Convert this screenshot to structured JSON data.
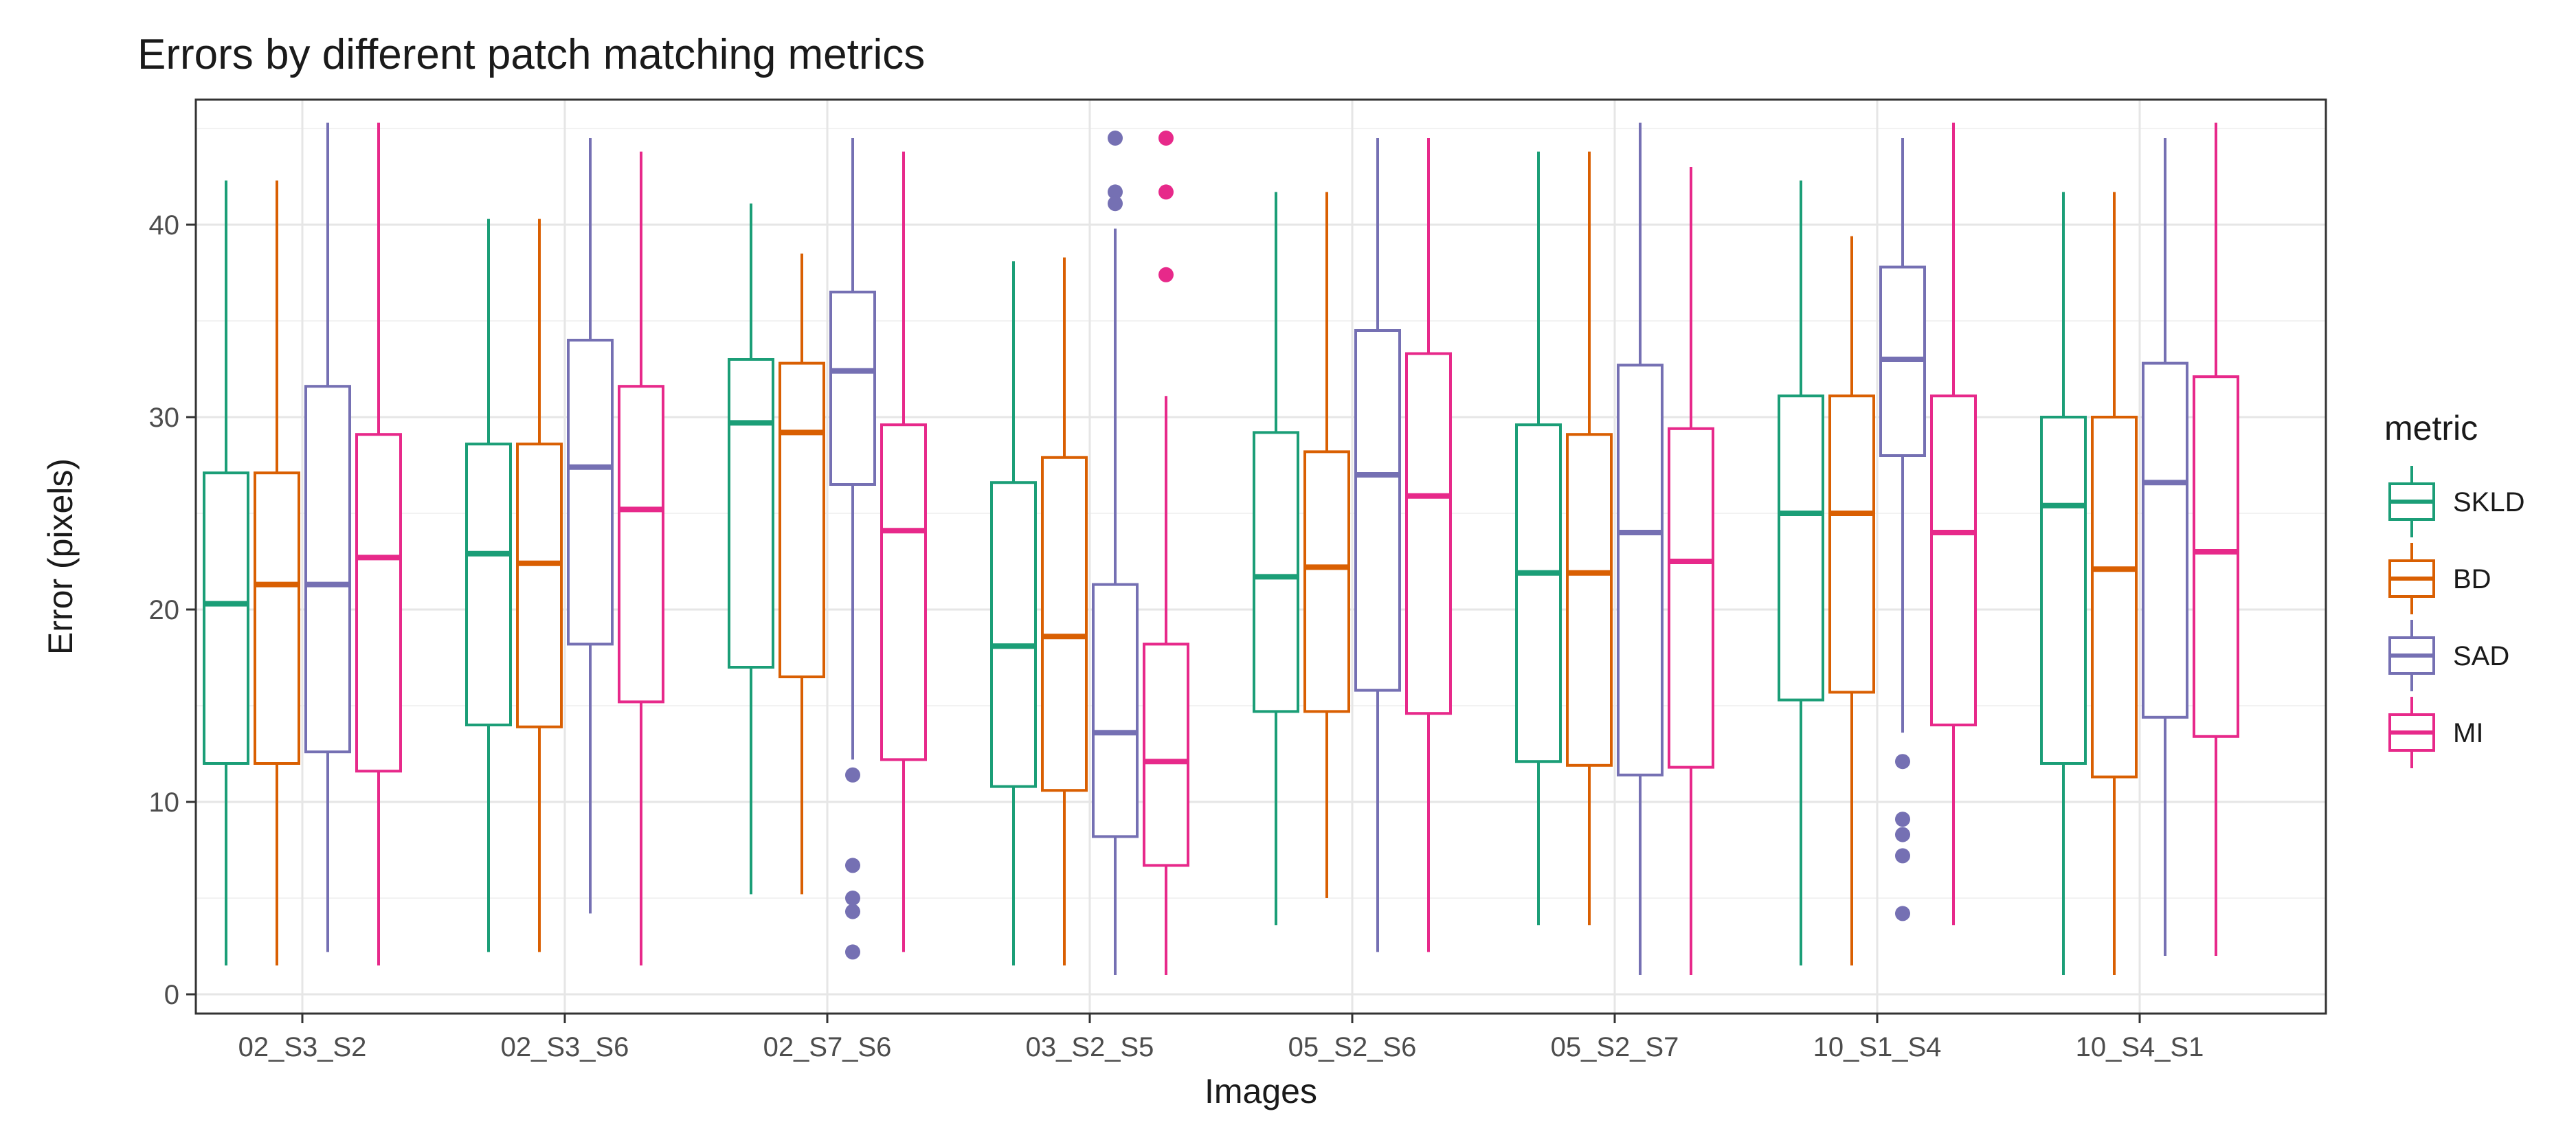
{
  "chart_data": {
    "type": "boxplot",
    "title": "Errors by different patch matching metrics",
    "xlabel": "Images",
    "ylabel": "Error (pixels)",
    "ylim": [
      -1,
      46.5
    ],
    "yticks": [
      0,
      10,
      20,
      30,
      40
    ],
    "grid": true,
    "legend": {
      "title": "metric",
      "placement": "right"
    },
    "categories": [
      "02_S3_S2",
      "02_S3_S6",
      "02_S7_S6",
      "03_S2_S5",
      "05_S2_S6",
      "05_S2_S7",
      "10_S1_S4",
      "10_S4_S1"
    ],
    "series": [
      {
        "name": "SKLD",
        "color": "#1b9e77",
        "boxes": [
          {
            "min": 1.5,
            "q1": 12.0,
            "median": 20.3,
            "q3": 27.1,
            "max": 42.3,
            "outliers": []
          },
          {
            "min": 2.2,
            "q1": 14.0,
            "median": 22.9,
            "q3": 28.6,
            "max": 40.3,
            "outliers": []
          },
          {
            "min": 5.2,
            "q1": 17.0,
            "median": 29.7,
            "q3": 33.0,
            "max": 41.1,
            "outliers": []
          },
          {
            "min": 1.5,
            "q1": 10.8,
            "median": 18.1,
            "q3": 26.6,
            "max": 38.1,
            "outliers": []
          },
          {
            "min": 3.6,
            "q1": 14.7,
            "median": 21.7,
            "q3": 29.2,
            "max": 41.7,
            "outliers": []
          },
          {
            "min": 3.6,
            "q1": 12.1,
            "median": 21.9,
            "q3": 29.6,
            "max": 43.8,
            "outliers": []
          },
          {
            "min": 1.5,
            "q1": 15.3,
            "median": 25.0,
            "q3": 31.1,
            "max": 42.3,
            "outliers": []
          },
          {
            "min": 1.0,
            "q1": 12.0,
            "median": 25.4,
            "q3": 30.0,
            "max": 41.7,
            "outliers": []
          }
        ]
      },
      {
        "name": "BD",
        "color": "#d95f02",
        "boxes": [
          {
            "min": 1.5,
            "q1": 12.0,
            "median": 21.3,
            "q3": 27.1,
            "max": 42.3,
            "outliers": []
          },
          {
            "min": 2.2,
            "q1": 13.9,
            "median": 22.4,
            "q3": 28.6,
            "max": 40.3,
            "outliers": []
          },
          {
            "min": 5.2,
            "q1": 16.5,
            "median": 29.2,
            "q3": 32.8,
            "max": 38.5,
            "outliers": []
          },
          {
            "min": 1.5,
            "q1": 10.6,
            "median": 18.6,
            "q3": 27.9,
            "max": 38.3,
            "outliers": []
          },
          {
            "min": 5.0,
            "q1": 14.7,
            "median": 22.2,
            "q3": 28.2,
            "max": 41.7,
            "outliers": []
          },
          {
            "min": 3.6,
            "q1": 11.9,
            "median": 21.9,
            "q3": 29.1,
            "max": 43.8,
            "outliers": []
          },
          {
            "min": 1.5,
            "q1": 15.7,
            "median": 25.0,
            "q3": 31.1,
            "max": 39.4,
            "outliers": []
          },
          {
            "min": 1.0,
            "q1": 11.3,
            "median": 22.1,
            "q3": 30.0,
            "max": 41.7,
            "outliers": []
          }
        ]
      },
      {
        "name": "SAD",
        "color": "#7570b3",
        "boxes": [
          {
            "min": 2.2,
            "q1": 12.6,
            "median": 21.3,
            "q3": 31.6,
            "max": 45.3,
            "outliers": []
          },
          {
            "min": 4.2,
            "q1": 18.2,
            "median": 27.4,
            "q3": 34.0,
            "max": 44.5,
            "outliers": []
          },
          {
            "min": 12.2,
            "q1": 26.5,
            "median": 32.4,
            "q3": 36.5,
            "max": 44.5,
            "outliers": [
              11.4,
              6.7,
              5.0,
              4.3,
              2.2
            ]
          },
          {
            "min": 1.0,
            "q1": 8.2,
            "median": 13.6,
            "q3": 21.3,
            "max": 39.8,
            "outliers": [
              44.5,
              41.7,
              41.1
            ]
          },
          {
            "min": 2.2,
            "q1": 15.8,
            "median": 27.0,
            "q3": 34.5,
            "max": 44.5,
            "outliers": []
          },
          {
            "min": 1.0,
            "q1": 11.4,
            "median": 24.0,
            "q3": 32.7,
            "max": 45.3,
            "outliers": []
          },
          {
            "min": 13.6,
            "q1": 28.0,
            "median": 33.0,
            "q3": 37.8,
            "max": 44.5,
            "outliers": [
              12.1,
              9.1,
              8.3,
              7.2,
              4.2
            ]
          },
          {
            "min": 2.0,
            "q1": 14.4,
            "median": 26.6,
            "q3": 32.8,
            "max": 44.5,
            "outliers": []
          }
        ]
      },
      {
        "name": "MI",
        "color": "#e7298a",
        "boxes": [
          {
            "min": 1.5,
            "q1": 11.6,
            "median": 22.7,
            "q3": 29.1,
            "max": 45.3,
            "outliers": []
          },
          {
            "min": 1.5,
            "q1": 15.2,
            "median": 25.2,
            "q3": 31.6,
            "max": 43.8,
            "outliers": []
          },
          {
            "min": 2.2,
            "q1": 12.2,
            "median": 24.1,
            "q3": 29.6,
            "max": 43.8,
            "outliers": []
          },
          {
            "min": 1.0,
            "q1": 6.7,
            "median": 12.1,
            "q3": 18.2,
            "max": 31.1,
            "outliers": [
              44.5,
              41.7,
              37.4
            ]
          },
          {
            "min": 2.2,
            "q1": 14.6,
            "median": 25.9,
            "q3": 33.3,
            "max": 44.5,
            "outliers": []
          },
          {
            "min": 1.0,
            "q1": 11.8,
            "median": 22.5,
            "q3": 29.4,
            "max": 43.0,
            "outliers": []
          },
          {
            "min": 3.6,
            "q1": 14.0,
            "median": 24.0,
            "q3": 31.1,
            "max": 45.3,
            "outliers": []
          },
          {
            "min": 2.0,
            "q1": 13.4,
            "median": 23.0,
            "q3": 32.1,
            "max": 45.3,
            "outliers": []
          }
        ]
      }
    ]
  }
}
